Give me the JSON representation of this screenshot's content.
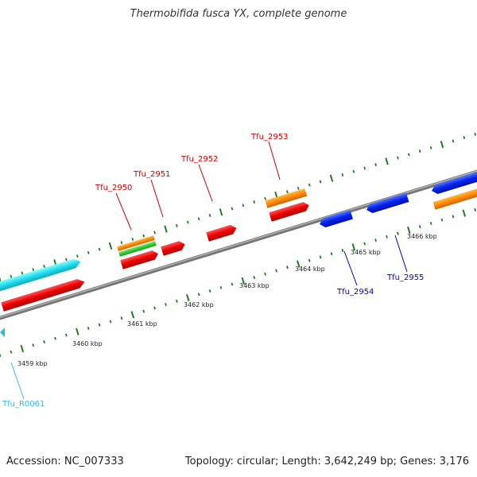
{
  "title": "Thermobifida fusca YX, complete genome",
  "footer": {
    "accession": "Accession: NC_007333",
    "summary": "Topology: circular; Length: 3,642,249 bp; Genes: 3,176"
  },
  "scale_labels": [
    "3459 kbp",
    "3460 kbp",
    "3461 kbp",
    "3462 kbp",
    "3463 kbp",
    "3464 kbp",
    "3465 kbp",
    "3466 kbp"
  ],
  "genes": [
    {
      "label": "Tfu_R0061",
      "color": "#33bbee"
    },
    {
      "label": "Tfu_2950",
      "color": "#cc0000"
    },
    {
      "label": "Tfu_2951",
      "color": "#cc0000"
    },
    {
      "label": "Tfu_2952",
      "color": "#cc0000"
    },
    {
      "label": "Tfu_2953",
      "color": "#cc0000"
    },
    {
      "label": "Tfu_2954",
      "color": "#0000bb"
    },
    {
      "label": "Tfu_2955",
      "color": "#0000bb"
    }
  ],
  "colors": {
    "backbone": "#777777",
    "tick": "#1f7f1f",
    "forward_cds": "#ee1111",
    "reverse_cds": "#1133ee",
    "rna": "#22ddee",
    "orange_feature": "#ff8800",
    "green_feature": "#33cc33"
  }
}
